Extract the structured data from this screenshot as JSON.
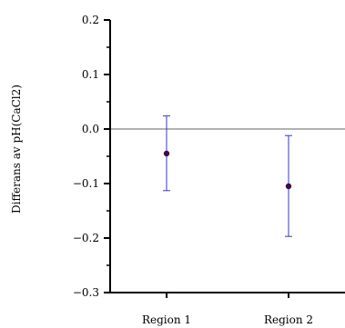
{
  "chart_data": {
    "type": "scatter",
    "title": "",
    "xlabel": "",
    "ylabel": "Differans av pH(CaCl2)",
    "categories": [
      "Region 1",
      "Region 2"
    ],
    "series": [
      {
        "values": [
          -0.045,
          -0.105
        ],
        "error_lower": [
          -0.113,
          -0.197
        ],
        "error_upper": [
          0.024,
          -0.012
        ]
      }
    ],
    "ylim": [
      -0.3,
      0.2
    ],
    "yticks": [
      0.2,
      0.1,
      0.0,
      -0.1,
      -0.2,
      -0.3
    ],
    "ytick_labels": [
      "0.2",
      "0.1",
      "0.0",
      "−0.1",
      "−0.2",
      "−0.3"
    ],
    "yminor_ticks": [
      0.15,
      0.05,
      -0.05,
      -0.15,
      -0.25
    ],
    "reference_line": 0.0,
    "grid": false,
    "legend": "none",
    "colors": {
      "point": "#3d0b4a",
      "errorbar": "#3535d6",
      "axis": "#000000",
      "reference_line": "#666666"
    }
  }
}
